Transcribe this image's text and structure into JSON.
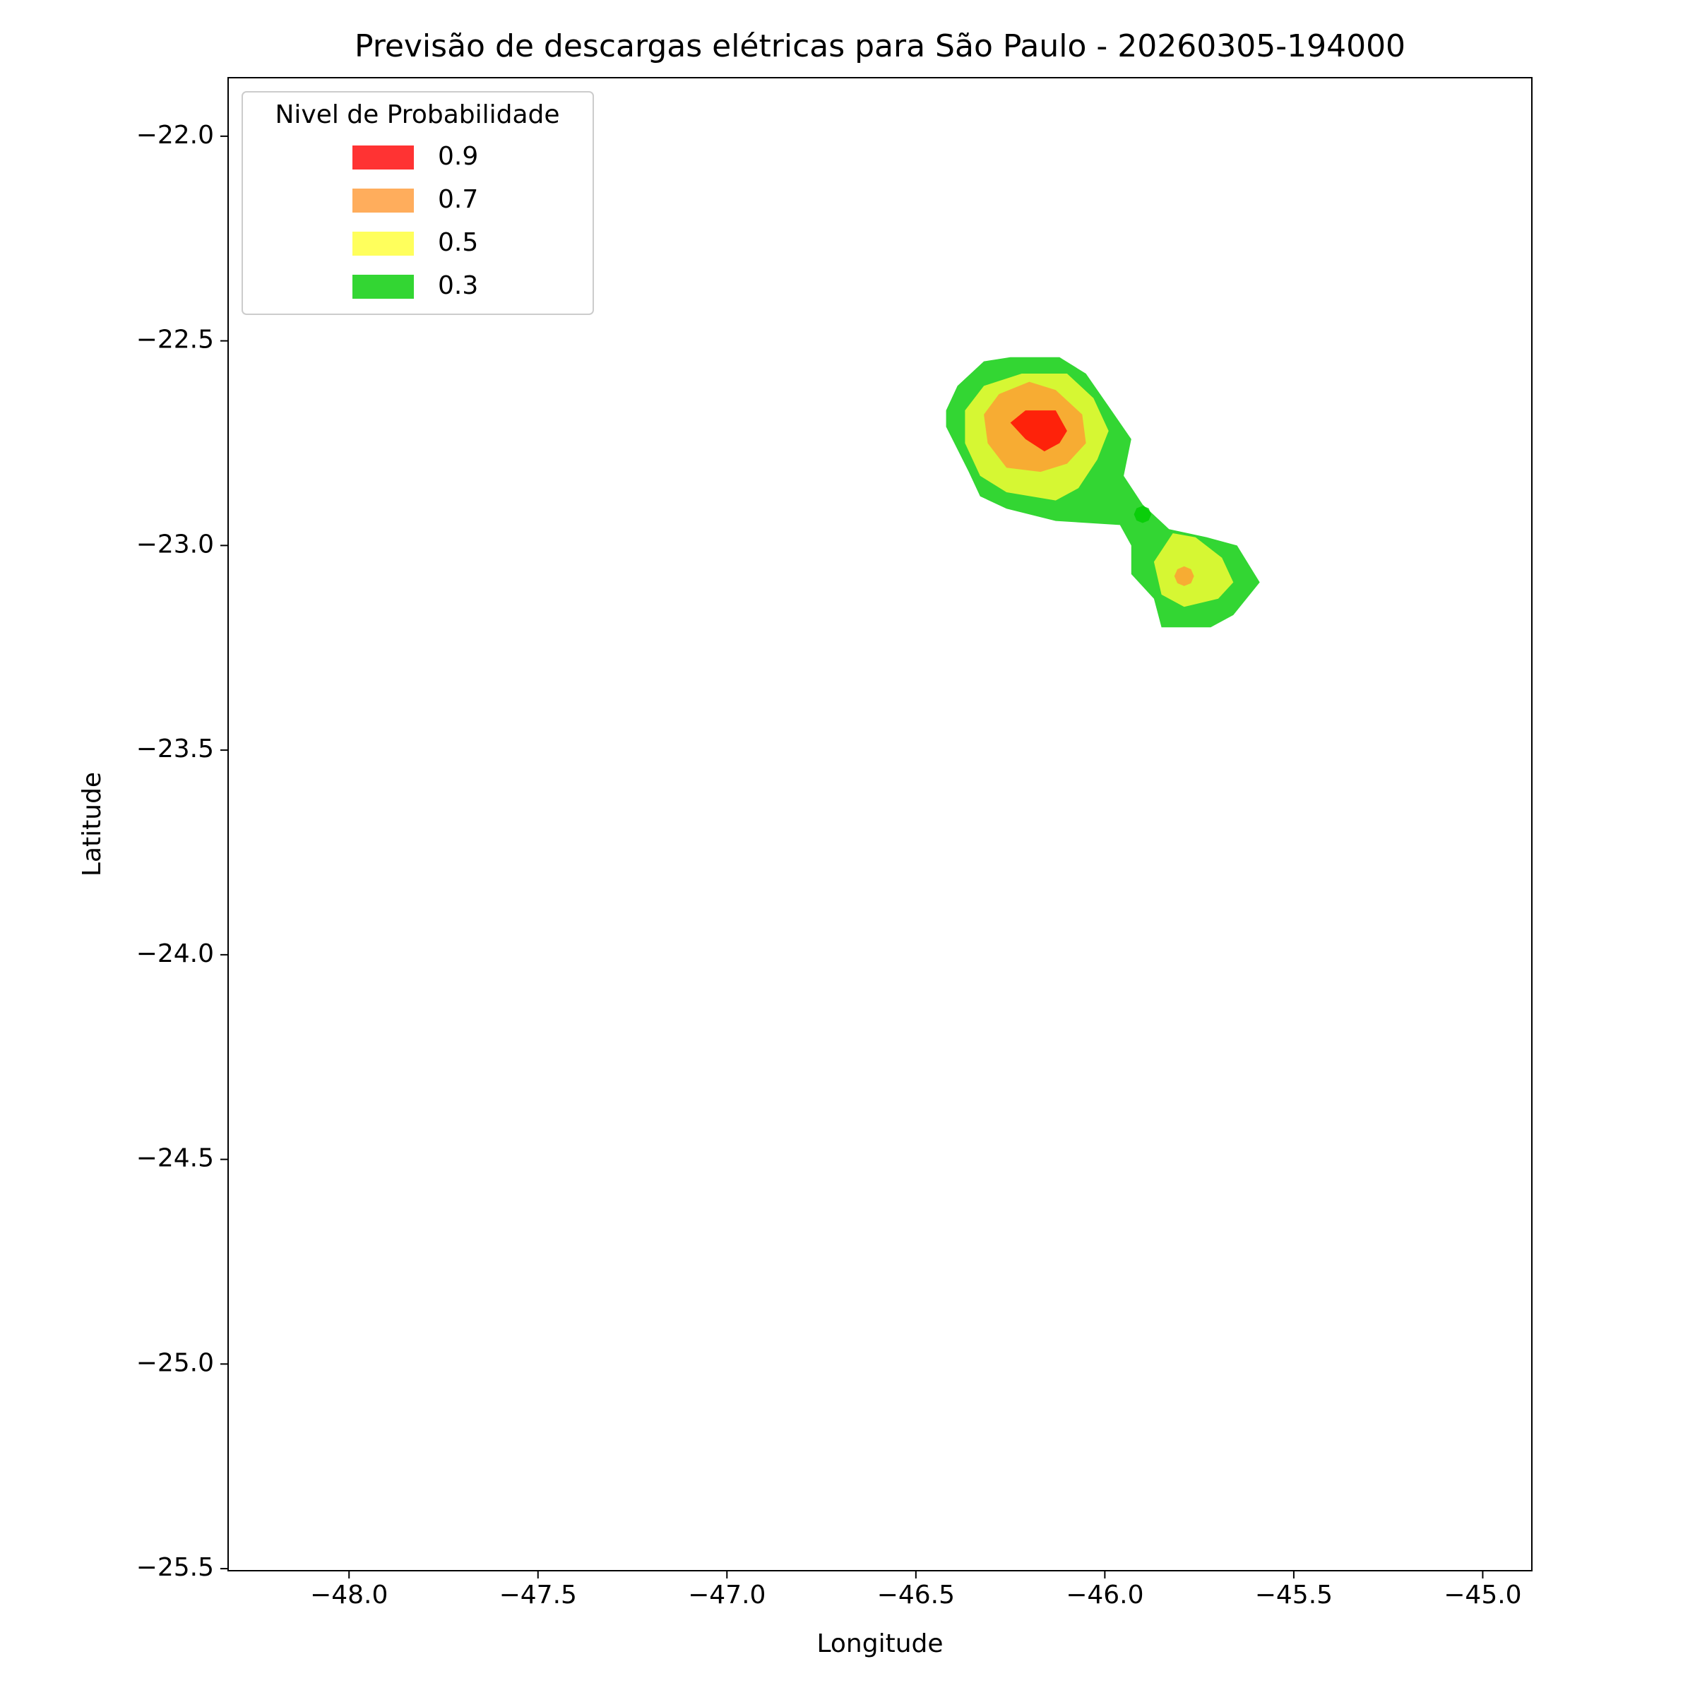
{
  "chart_data": {
    "type": "contour",
    "title": "Previsão de descargas elétricas para São Paulo - 20260305-194000",
    "xlabel": "Longitude",
    "ylabel": "Latitude",
    "xlim": [
      -48.32,
      -44.87
    ],
    "ylim": [
      -25.505,
      -21.857
    ],
    "xticks": [
      {
        "value": -48.0,
        "label": "−48.0"
      },
      {
        "value": -47.5,
        "label": "−47.5"
      },
      {
        "value": -47.0,
        "label": "−47.0"
      },
      {
        "value": -46.5,
        "label": "−46.5"
      },
      {
        "value": -46.0,
        "label": "−46.0"
      },
      {
        "value": -45.5,
        "label": "−45.5"
      },
      {
        "value": -45.0,
        "label": "−45.0"
      }
    ],
    "yticks": [
      {
        "value": -22.0,
        "label": "−22.0"
      },
      {
        "value": -22.5,
        "label": "−22.5"
      },
      {
        "value": -23.0,
        "label": "−23.0"
      },
      {
        "value": -23.5,
        "label": "−23.5"
      },
      {
        "value": -24.0,
        "label": "−24.0"
      },
      {
        "value": -24.5,
        "label": "−24.5"
      },
      {
        "value": -25.0,
        "label": "−25.0"
      },
      {
        "value": -25.5,
        "label": "−25.5"
      }
    ],
    "legend_title": "Nivel de Probabilidade",
    "legend": "upper left",
    "alpha": 0.8,
    "series": [
      {
        "name": "0.9",
        "color": "#ff0000",
        "polygons": [
          {
            "x": [
              -46.25,
              -46.21,
              -46.13,
              -46.1,
              -46.12,
              -46.16,
              -46.21
            ],
            "y": [
              -22.7,
              -22.67,
              -22.67,
              -22.72,
              -22.75,
              -22.77,
              -22.74
            ]
          }
        ]
      },
      {
        "name": "0.7",
        "color": "#ff9933",
        "polygons": [
          {
            "x": [
              -46.32,
              -46.28,
              -46.2,
              -46.13,
              -46.06,
              -46.05,
              -46.1,
              -46.17,
              -46.26,
              -46.31
            ],
            "y": [
              -22.68,
              -22.63,
              -22.6,
              -22.62,
              -22.68,
              -22.75,
              -22.8,
              -22.82,
              -22.81,
              -22.75
            ]
          },
          {
            "x": [
              -45.764,
              -45.772,
              -45.79,
              -45.808,
              -45.816,
              -45.808,
              -45.79,
              -45.772
            ],
            "y": [
              -23.075,
              -23.058,
              -23.051,
              -23.058,
              -23.075,
              -23.092,
              -23.099,
              -23.092
            ]
          }
        ]
      },
      {
        "name": "0.5",
        "color": "#ffff33",
        "polygons": [
          {
            "x": [
              -46.37,
              -46.32,
              -46.22,
              -46.1,
              -46.03,
              -45.99,
              -46.02,
              -46.07,
              -46.13,
              -46.26,
              -46.33,
              -46.37
            ],
            "y": [
              -22.67,
              -22.61,
              -22.58,
              -22.58,
              -22.64,
              -22.72,
              -22.79,
              -22.86,
              -22.89,
              -22.87,
              -22.83,
              -22.75
            ]
          },
          {
            "x": [
              -45.87,
              -45.82,
              -45.76,
              -45.69,
              -45.66,
              -45.7,
              -45.79,
              -45.85
            ],
            "y": [
              -23.04,
              -22.97,
              -22.98,
              -23.03,
              -23.09,
              -23.13,
              -23.15,
              -23.12
            ]
          }
        ]
      },
      {
        "name": "0.3",
        "color": "#00cc00",
        "polygons": [
          {
            "x": [
              -46.42,
              -46.39,
              -46.32,
              -46.25,
              -46.12,
              -46.05,
              -45.99,
              -45.93,
              -45.95,
              -45.9,
              -45.83,
              -45.73,
              -45.65,
              -45.59,
              -45.66,
              -45.72,
              -45.85,
              -45.87,
              -45.93,
              -45.93,
              -45.96,
              -46.13,
              -46.26,
              -46.33,
              -46.36,
              -46.42
            ],
            "y": [
              -22.67,
              -22.61,
              -22.55,
              -22.54,
              -22.54,
              -22.58,
              -22.66,
              -22.74,
              -22.83,
              -22.9,
              -22.96,
              -22.98,
              -23.0,
              -23.09,
              -23.17,
              -23.2,
              -23.2,
              -23.13,
              -23.07,
              -23.0,
              -22.95,
              -22.94,
              -22.91,
              -22.88,
              -22.82,
              -22.71
            ]
          },
          {
            "x": [
              -45.877,
              -45.884,
              -45.9,
              -45.916,
              -45.923,
              -45.916,
              -45.9,
              -45.884
            ],
            "y": [
              -22.924,
              -22.909,
              -22.903,
              -22.909,
              -22.924,
              -22.939,
              -22.945,
              -22.939
            ]
          }
        ]
      }
    ]
  }
}
